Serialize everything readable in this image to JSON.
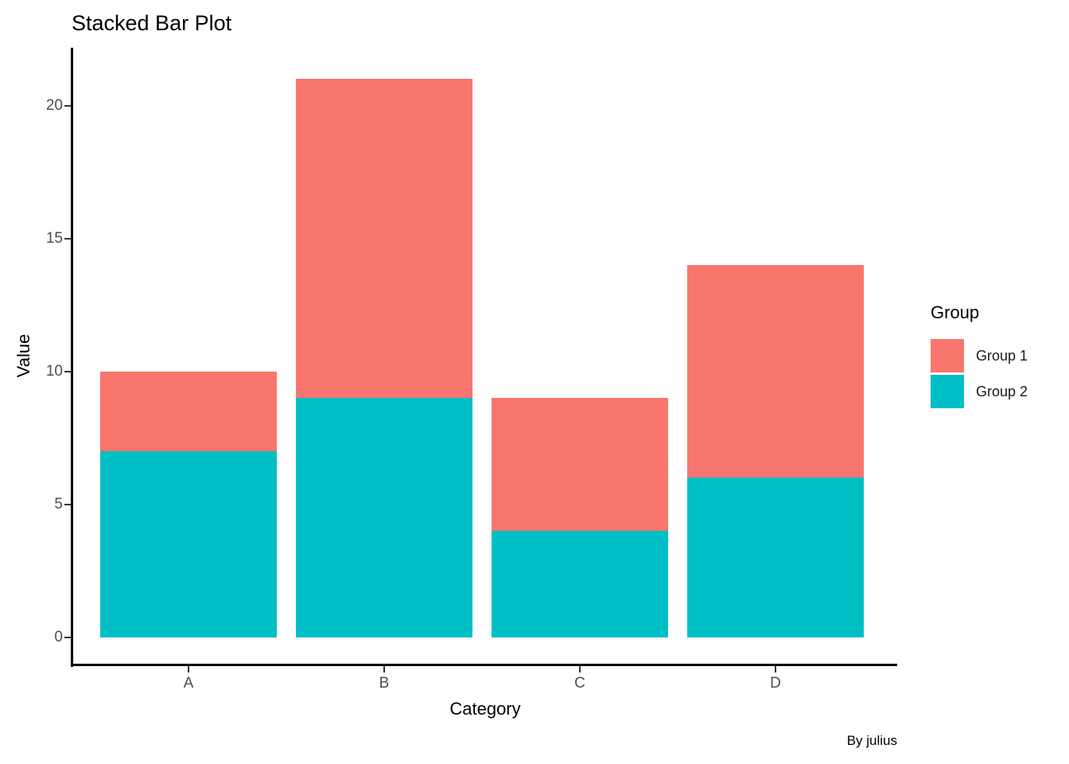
{
  "chart_data": {
    "type": "bar",
    "stacked": true,
    "title": "Stacked Bar Plot",
    "xlabel": "Category",
    "ylabel": "Value",
    "caption": "By julius",
    "categories": [
      "A",
      "B",
      "C",
      "D"
    ],
    "series": [
      {
        "name": "Group 1",
        "color": "#F8766D",
        "values": [
          3,
          12,
          5,
          8
        ]
      },
      {
        "name": "Group 2",
        "color": "#00BFC4",
        "values": [
          7,
          9,
          4,
          6
        ]
      }
    ],
    "stack_bottom_to_top": [
      "Group 2",
      "Group 1"
    ],
    "totals": [
      10,
      21,
      9,
      14
    ],
    "y_ticks": [
      0,
      5,
      10,
      15,
      20
    ],
    "ylim": [
      0,
      22.05
    ],
    "grid": false,
    "legend": {
      "title": "Group",
      "position": "right"
    },
    "colors": {
      "group1": "#F8766D",
      "group2": "#00BFC4",
      "axis_text": "#4D4D4D",
      "axis_line": "#000000",
      "title_text": "#000000",
      "background": "#FFFFFF"
    }
  }
}
